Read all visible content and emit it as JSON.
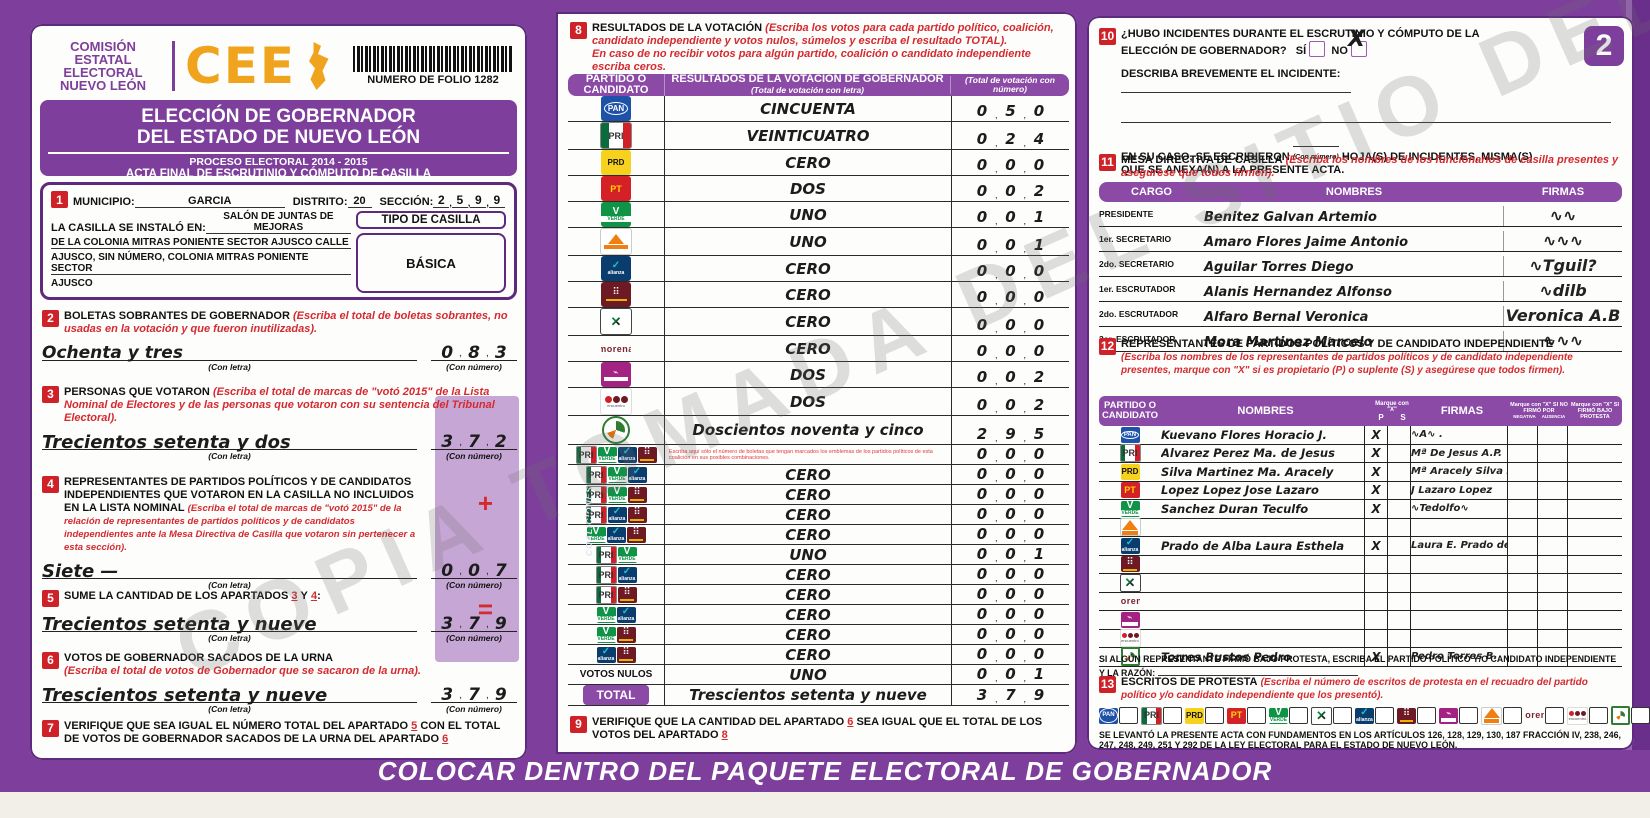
{
  "watermark": "COPIA TOMADA DEL SITIO DEL",
  "page_badge": "2",
  "bottom_bar": "COLOCAR DENTRO DEL PAQUETE ELECTORAL DE GOBERNADOR",
  "header": {
    "commission": "COMISIÓN ESTATAL ELECTORAL NUEVO LEÓN",
    "logo_text": "CEE",
    "folio_label": "NUMERO DE FOLIO 1282",
    "title_line1": "ELECCIÓN DE GOBERNADOR",
    "title_line2": "DEL ESTADO DE NUEVO LEÓN",
    "process": "PROCESO ELECTORAL  2014 - 2015",
    "acta": "ACTA FINAL DE ESCRUTINIO Y CÓMPUTO DE CASILLA"
  },
  "section1": {
    "num": "1",
    "municipio_label": "MUNICIPIO:",
    "municipio": "GARCIA",
    "distrito_label": "DISTRITO:",
    "distrito": "20",
    "seccion_label": "SECCIÓN:",
    "seccion_digits": [
      "2",
      "5",
      "9",
      "9"
    ],
    "instalada_label": "LA CASILLA SE INSTALÓ EN:",
    "instalada": "SALÓN DE JUNTAS DE MEJORAS",
    "direccion2": "DE LA COLONIA MITRAS PONIENTE SECTOR AJUSCO CALLE",
    "direccion3": "AJUSCO, SIN NÚMERO, COLONIA MITRAS PONIENTE SECTOR",
    "direccion4": "AJUSCO",
    "tipo_label": "TIPO DE CASILLA",
    "tipo": "BÁSICA"
  },
  "section2": {
    "num": "2",
    "title": "BOLETAS SOBRANTES DE GOBERNADOR",
    "note": "(Escriba el total de boletas sobrantes, no usadas en la votación y que fueron inutilizadas).",
    "letra": "Ochenta y tres",
    "con_letra": "(Con letra)",
    "con_numero": "(Con número)",
    "digits": [
      "0",
      "8",
      "3"
    ]
  },
  "section3": {
    "num": "3",
    "title": "PERSONAS QUE VOTARON",
    "note": "(Escriba el total de marcas de \"votó 2015\" de la Lista Nominal de Electores y de las personas que votaron con su sentencia del Tribunal Electoral).",
    "letra": "Trecientos setenta y dos",
    "digits": [
      "3",
      "7",
      "2"
    ]
  },
  "section4": {
    "num": "4",
    "title": "REPRESENTANTES DE PARTIDOS POLÍTICOS Y DE CANDIDATOS INDEPENDIENTES QUE VOTARON EN LA CASILLA NO INCLUIDOS EN LA LISTA NOMINAL",
    "note": "(Escriba el total de marcas de \"votó 2015\" de la relación de representantes de partidos políticos y de candidatos independientes ante la Mesa Directiva de Casilla que votaron sin pertenecer a esta sección).",
    "letra": "Siete —",
    "plus_symbol": "+",
    "digits": [
      "0",
      "0",
      "7"
    ]
  },
  "section5": {
    "num": "5",
    "title_pre": "SUME LA CANTIDAD DE LOS APARTADOS",
    "ref1": "3",
    "y": "Y",
    "ref2": "4",
    "colon": ":",
    "letra": "Trecientos setenta y nueve",
    "equals_symbol": "=",
    "digits": [
      "3",
      "7",
      "9"
    ]
  },
  "section6": {
    "num": "6",
    "title": "VOTOS DE GOBERNADOR SACADOS DE LA URNA",
    "note": "(Escriba el total de votos de Gobernador que se sacaron de la urna).",
    "letra": "Trescientos  setenta y nueve",
    "digits": [
      "3",
      "7",
      "9"
    ]
  },
  "section7": {
    "num": "7",
    "text_pre": "VERIFIQUE QUE SEA IGUAL EL NÚMERO TOTAL DEL APARTADO",
    "ref1": "5",
    "text_mid": "CON EL TOTAL DE VOTOS DE GOBERNADOR SACADOS DE LA URNA DEL APARTADO",
    "ref2": "6"
  },
  "section8": {
    "num": "8",
    "title": "RESULTADOS DE LA VOTACIÓN",
    "note1": "(Escriba los votos para cada partido político, coalición, candidato independiente y votos nulos, súmelos y escriba el resultado TOTAL).",
    "note2": "En caso de no recibir votos para algún partido, coalición o candidato independiente escriba ceros.",
    "col1": "PARTIDO O CANDIDATO",
    "col2": "RESULTADOS DE LA VOTACIÓN DE GOBERNADOR",
    "col2_sub": "(Total de votación con letra)",
    "col3": "(Total de votación con número)",
    "coaliciones_label": "COALICIONES",
    "coalition_note": "Escriba aquí sólo el número de boletas que tengan marcados los emblemas de los partidos políticos de esta coalición en sus posibles combinaciones.",
    "nulos_label": "VOTOS NULOS",
    "total_label": "TOTAL",
    "rows": [
      {
        "type": "party",
        "logos": [
          "pan"
        ],
        "letra": "CINCUENTA",
        "digits": [
          "0",
          "5",
          "0"
        ]
      },
      {
        "type": "party",
        "logos": [
          "pri"
        ],
        "letra": "VEINTICUATRO",
        "digits": [
          "0",
          "2",
          "4"
        ]
      },
      {
        "type": "party",
        "logos": [
          "prd"
        ],
        "letra": "CERO",
        "digits": [
          "0",
          "0",
          "0"
        ]
      },
      {
        "type": "party",
        "logos": [
          "pt"
        ],
        "letra": "DOS",
        "digits": [
          "0",
          "0",
          "2"
        ]
      },
      {
        "type": "party",
        "logos": [
          "verde"
        ],
        "letra": "UNO",
        "digits": [
          "0",
          "0",
          "1"
        ]
      },
      {
        "type": "party",
        "logos": [
          "mc"
        ],
        "letra": "UNO",
        "digits": [
          "0",
          "0",
          "1"
        ]
      },
      {
        "type": "party",
        "logos": [
          "alianza"
        ],
        "letra": "CERO",
        "digits": [
          "0",
          "0",
          "0"
        ]
      },
      {
        "type": "party",
        "logos": [
          "dem"
        ],
        "letra": "CERO",
        "digits": [
          "0",
          "0",
          "0"
        ]
      },
      {
        "type": "party",
        "logos": [
          "cruzada"
        ],
        "letra": "CERO",
        "digits": [
          "0",
          "0",
          "0"
        ]
      },
      {
        "type": "party",
        "logos": [
          "morena"
        ],
        "letra": "CERO",
        "digits": [
          "0",
          "0",
          "0"
        ]
      },
      {
        "type": "party",
        "logos": [
          "humanista"
        ],
        "letra": "DOS",
        "digits": [
          "0",
          "0",
          "2"
        ]
      },
      {
        "type": "party",
        "logos": [
          "encuentro"
        ],
        "letra": "DOS",
        "digits": [
          "0",
          "0",
          "2"
        ]
      },
      {
        "type": "party",
        "logos": [
          "indep"
        ],
        "letra": "Doscientos noventa y cinco",
        "digits": [
          "2",
          "9",
          "5"
        ]
      },
      {
        "type": "coalition-note",
        "logos": [
          "pri",
          "verde",
          "alianza",
          "dem"
        ],
        "letra": "",
        "digits": [
          "0",
          "0",
          "0"
        ]
      },
      {
        "type": "coalition",
        "logos": [
          "pri",
          "verde",
          "alianza"
        ],
        "letra": "CERO",
        "digits": [
          "0",
          "0",
          "0"
        ]
      },
      {
        "type": "coalition",
        "logos": [
          "pri",
          "verde",
          "dem"
        ],
        "letra": "CERO",
        "digits": [
          "0",
          "0",
          "0"
        ]
      },
      {
        "type": "coalition",
        "logos": [
          "pri",
          "alianza",
          "dem"
        ],
        "letra": "CERO",
        "digits": [
          "0",
          "0",
          "0"
        ]
      },
      {
        "type": "coalition",
        "logos": [
          "verde",
          "alianza",
          "dem"
        ],
        "letra": "CERO",
        "digits": [
          "0",
          "0",
          "0"
        ]
      },
      {
        "type": "coalition",
        "logos": [
          "pri",
          "verde"
        ],
        "letra": "UNO",
        "digits": [
          "0",
          "0",
          "1"
        ]
      },
      {
        "type": "coalition",
        "logos": [
          "pri",
          "alianza"
        ],
        "letra": "CERO",
        "digits": [
          "0",
          "0",
          "0"
        ]
      },
      {
        "type": "coalition",
        "logos": [
          "pri",
          "dem"
        ],
        "letra": "CERO",
        "digits": [
          "0",
          "0",
          "0"
        ]
      },
      {
        "type": "coalition",
        "logos": [
          "verde",
          "alianza"
        ],
        "letra": "CERO",
        "digits": [
          "0",
          "0",
          "0"
        ]
      },
      {
        "type": "coalition",
        "logos": [
          "verde",
          "dem"
        ],
        "letra": "CERO",
        "digits": [
          "0",
          "0",
          "0"
        ]
      },
      {
        "type": "coalition",
        "logos": [
          "alianza",
          "dem"
        ],
        "letra": "CERO",
        "digits": [
          "0",
          "0",
          "0"
        ]
      },
      {
        "type": "nulos",
        "letra": "UNO",
        "digits": [
          "0",
          "0",
          "1"
        ]
      },
      {
        "type": "total",
        "letra": "Trescientos setenta y nueve",
        "digits": [
          "3",
          "7",
          "9"
        ]
      }
    ]
  },
  "section9": {
    "num": "9",
    "text_pre": "VERIFIQUE QUE LA CANTIDAD DEL APARTADO",
    "ref1": "6",
    "text_mid": "SEA IGUAL QUE EL TOTAL DE LOS VOTOS DEL APARTADO",
    "ref2": "8"
  },
  "section10": {
    "num": "10",
    "title": "¿HUBO INCIDENTES DURANTE EL ESCRUTINIO Y CÓMPUTO DE LA ELECCIÓN DE GOBERNADOR?",
    "si_label": "SÍ",
    "no_label": "NO",
    "no_marked": "X",
    "describe_label": "DESCRIBA BREVEMENTE EL INCIDENTE:",
    "encaso_pre": "EN SU CASO, SE ESCRIBIERON",
    "con_numero": "(Con número)",
    "encaso_post": "HOJA(S) DE INCIDENTES, MISMA(S) QUE SE ANEXA(N) A LA PRESENTE ACTA."
  },
  "section11": {
    "num": "11",
    "title": "MESA DIRECTIVA DE CASILLA",
    "note": "(Escriba los nombres de los funcionarios de casilla presentes y asegúrese que todos firmen).",
    "col_cargo": "CARGO",
    "col_nombres": "NOMBRES",
    "col_firmas": "FIRMAS",
    "rows": [
      {
        "cargo": "PRESIDENTE",
        "nombre": "Benitez Galvan Artemio",
        "firma": "∿∿"
      },
      {
        "cargo": "1er. SECRETARIO",
        "nombre": "Amaro Flores Jaime Antonio",
        "firma": "∿∿∿"
      },
      {
        "cargo": "2do. SECRETARIO",
        "nombre": "Aguilar Torres Diego",
        "firma": "∿Tguil?"
      },
      {
        "cargo": "1er. ESCRUTADOR",
        "nombre": "Alanis Hernandez Alfonso",
        "firma": "∿dilb"
      },
      {
        "cargo": "2do. ESCRUTADOR",
        "nombre": "Alfaro Bernal Veronica",
        "firma": "Veronica A.B"
      },
      {
        "cargo": "3er. ESCRUTADOR",
        "nombre": "Mora Martinez Marcelo",
        "firma": "∿∿∿"
      }
    ]
  },
  "section12": {
    "num": "12",
    "title": "REPRESENTANTES DE PARTIDOS POLÍTICOS Y DE CANDIDATO INDEPENDIENTE",
    "note": "(Escriba los nombres de los representantes de partidos políticos y de candidato independiente presentes, marque con \"X\" si es propietario (P) o suplente (S) y asegúrese que todos firmen).",
    "col_party": "PARTIDO O CANDIDATO",
    "col_nombres": "NOMBRES",
    "col_marque": "Marque con \"X\"",
    "col_p": "P",
    "col_s": "S",
    "col_firmas": "FIRMAS",
    "col_nofirmo": "Marque con \"X\" SI NO FIRMÓ POR",
    "col_negativa": "NEGATIVA",
    "col_ausencia": "AUSENCIA",
    "col_protesta": "Marque con \"X\" SI FIRMÓ BAJO PROTESTA",
    "rows": [
      {
        "logo": "pan",
        "nombre": "Kuevano Flores Horacio J.",
        "p": "X",
        "s": "",
        "firma": "∿A∿ ."
      },
      {
        "logo": "pri",
        "nombre": "Alvarez Perez Ma. de Jesus",
        "p": "X",
        "s": "",
        "firma": "Mª De Jesus A.P."
      },
      {
        "logo": "prd",
        "nombre": "Silva Martinez Ma. Aracely",
        "p": "X",
        "s": "",
        "firma": "Mª Aracely Silva M"
      },
      {
        "logo": "pt",
        "nombre": "Lopez Lopez Jose Lazaro",
        "p": "X",
        "s": "",
        "firma": "J Lazaro Lopez"
      },
      {
        "logo": "verde",
        "nombre": "Sanchez Duran Teculfo",
        "p": "X",
        "s": "",
        "firma": "∿Tedolfo∿"
      },
      {
        "logo": "mc",
        "nombre": "",
        "p": "",
        "s": "",
        "firma": ""
      },
      {
        "logo": "alianza",
        "nombre": "Prado de Alba Laura Esthela",
        "p": "X",
        "s": "",
        "firma": "Laura E. Prado de A."
      },
      {
        "logo": "dem",
        "nombre": "",
        "p": "",
        "s": "",
        "firma": ""
      },
      {
        "logo": "cruzada",
        "nombre": "",
        "p": "",
        "s": "",
        "firma": ""
      },
      {
        "logo": "morena",
        "nombre": "",
        "p": "",
        "s": "",
        "firma": ""
      },
      {
        "logo": "humanista",
        "nombre": "",
        "p": "",
        "s": "",
        "firma": ""
      },
      {
        "logo": "encuentro",
        "nombre": "",
        "p": "",
        "s": "",
        "firma": ""
      },
      {
        "logo": "indep",
        "nombre": "Torres Bustos Pedro",
        "p": "X",
        "s": "",
        "firma": "Pedro Torres B."
      }
    ],
    "protesta_note": "SI ALGÚN REPRESENTANTE FIRMÓ BAJO PROTESTA, ESCRIBA EL PARTIDO POLÍTICO Y/O CANDIDATO INDEPENDIENTE Y LA RAZÓN:"
  },
  "section13": {
    "num": "13",
    "title": "ESCRITOS DE PROTESTA",
    "note": "(Escriba el número de escritos de protesta en el recuadro del partido político y/o candidato independiente que los presentó).",
    "logos": [
      "pan",
      "pri",
      "prd",
      "pt",
      "verde",
      "cruzada",
      "alianza",
      "dem",
      "humanista",
      "mc",
      "morena",
      "encuentro",
      "indep"
    ],
    "legal": "SE LEVANTÓ LA PRESENTE ACTA CON FUNDAMENTOS EN LOS ARTÍCULOS 126, 128, 129, 130, 187 FRACCIÓN IV, 238, 246, 247, 248, 249, 251 Y 292 DE LA LEY ELECTORAL PARA EL ESTADO DE NUEVO LEÓN."
  }
}
